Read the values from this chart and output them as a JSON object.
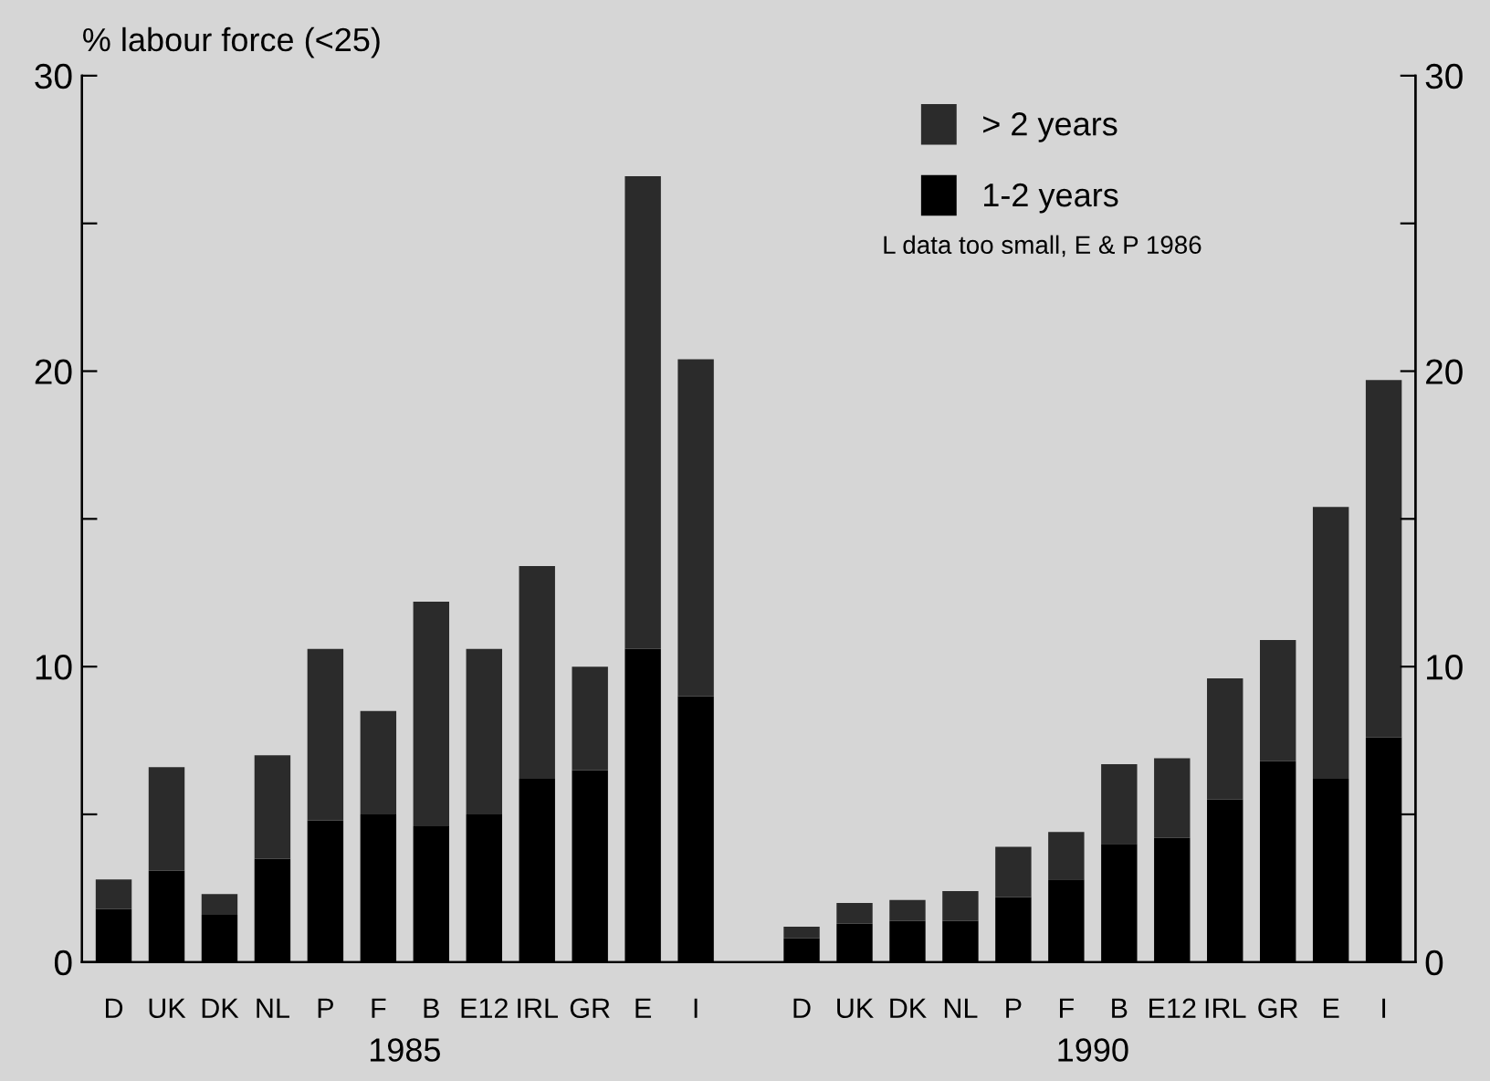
{
  "chart_data": {
    "type": "bar",
    "stacked": true,
    "ylabel": "% labour force (<25)",
    "categories": [
      "D",
      "UK",
      "DK",
      "NL",
      "P",
      "F",
      "B",
      "E12",
      "IRL",
      "GR",
      "E",
      "I",
      null,
      "D",
      "UK",
      "DK",
      "NL",
      "P",
      "F",
      "B",
      "E12",
      "IRL",
      "GR",
      "E",
      "I"
    ],
    "series": [
      {
        "name": "1-2 years",
        "color": "#000000",
        "values": [
          1.8,
          3.1,
          1.6,
          3.5,
          4.8,
          5.0,
          4.6,
          5.0,
          6.2,
          6.5,
          10.6,
          9.0,
          null,
          0.8,
          1.3,
          1.4,
          1.4,
          2.2,
          2.8,
          4.0,
          4.2,
          5.5,
          6.8,
          6.2,
          7.6
        ]
      },
      {
        "name": "> 2 years",
        "color": "#2b2b2b",
        "values": [
          1.0,
          3.5,
          0.7,
          3.5,
          5.8,
          3.5,
          7.6,
          5.6,
          7.2,
          3.5,
          16.0,
          11.4,
          null,
          0.4,
          0.7,
          0.7,
          1.0,
          1.7,
          1.6,
          2.7,
          2.7,
          4.1,
          4.1,
          9.2,
          12.1
        ]
      }
    ],
    "ylim": [
      0,
      30
    ],
    "yticks": [
      0,
      {
        "value": 5,
        "label": null
      },
      10,
      {
        "value": 15,
        "label": null
      },
      20,
      {
        "value": 25,
        "label": null
      },
      30
    ],
    "y2lim": [
      0,
      30
    ],
    "y2ticks": [
      0,
      {
        "value": 5,
        "label": null
      },
      10,
      {
        "value": 15,
        "label": null
      },
      20,
      {
        "value": 25,
        "label": null
      },
      30
    ],
    "legend": "top right",
    "annotations": [
      "1985",
      "1990",
      "L data too small, E & P 1986"
    ]
  }
}
